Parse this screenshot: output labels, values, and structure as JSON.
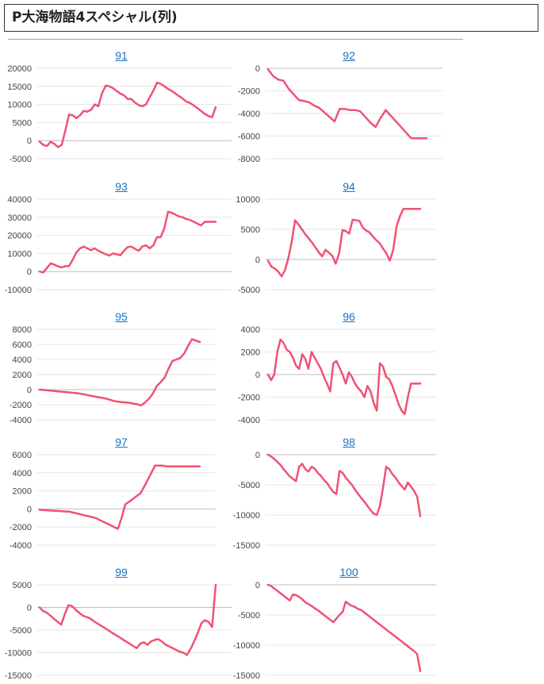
{
  "page": {
    "title": "P大海物語4スペシャル(列)"
  },
  "colors": {
    "line": "#f05273",
    "grid": "#e6e6e6",
    "axis": "#bdbdbd",
    "link": "#1a73c5"
  },
  "chart_data": [
    {
      "type": "line",
      "title": "91",
      "ylim": [
        -5000,
        20000
      ],
      "yticks": [
        -5000,
        0,
        5000,
        10000,
        15000,
        20000
      ],
      "x": [
        0,
        1,
        2,
        3,
        4,
        5,
        6,
        7,
        8,
        9,
        10,
        11,
        12,
        13,
        14,
        15,
        16,
        17,
        18,
        19,
        20,
        21,
        22,
        23,
        24,
        25,
        26,
        27,
        28,
        29,
        30,
        31,
        32,
        33,
        34,
        35,
        36,
        37,
        38,
        39,
        40,
        41,
        42,
        43,
        44,
        45,
        46,
        47,
        48
      ],
      "values": [
        -300,
        -1200,
        -1500,
        -300,
        -900,
        -1800,
        -1200,
        2800,
        7200,
        7000,
        6200,
        7000,
        8200,
        8000,
        8500,
        10000,
        9500,
        13000,
        15200,
        15000,
        14500,
        13700,
        13000,
        12500,
        11500,
        11500,
        10500,
        9800,
        9500,
        10000,
        12000,
        13800,
        16000,
        15700,
        15000,
        14300,
        13700,
        13000,
        12300,
        11600,
        10800,
        10400,
        9700,
        9000,
        8200,
        7400,
        6800,
        6500,
        9200
      ]
    },
    {
      "type": "line",
      "title": "92",
      "ylim": [
        -8000,
        0
      ],
      "yticks": [
        -8000,
        -6000,
        -4000,
        -2000,
        0
      ],
      "x": [
        0,
        1,
        2,
        3,
        4,
        5,
        6,
        7,
        8,
        9,
        10,
        11,
        12,
        13,
        14,
        15,
        16,
        17,
        18,
        19,
        20,
        21,
        22,
        23,
        24,
        25,
        26,
        27,
        28,
        29,
        30,
        31
      ],
      "values": [
        -100,
        -700,
        -1000,
        -1100,
        -1800,
        -2300,
        -2800,
        -2900,
        -3000,
        -3300,
        -3500,
        -3900,
        -4300,
        -4700,
        -3600,
        -3600,
        -3700,
        -3700,
        -3800,
        -4300,
        -4800,
        -5200,
        -4400,
        -3700,
        -4200,
        -4700,
        -5200,
        -5700,
        -6200,
        -6200,
        -6200,
        -6200
      ]
    },
    {
      "type": "line",
      "title": "93",
      "ylim": [
        -10000,
        40000
      ],
      "yticks": [
        -10000,
        0,
        10000,
        20000,
        30000,
        40000
      ],
      "x": [
        0,
        1,
        2,
        3,
        4,
        5,
        6,
        7,
        8,
        9,
        10,
        11,
        12,
        13,
        14,
        15,
        16,
        17,
        18,
        19,
        20,
        21,
        22,
        23,
        24,
        25,
        26,
        27,
        28,
        29,
        30,
        31,
        32,
        33,
        34,
        35,
        36,
        37,
        38,
        39,
        40,
        41,
        42,
        43,
        44,
        45,
        46,
        47,
        48
      ],
      "values": [
        0,
        -500,
        2000,
        4500,
        3800,
        2800,
        2300,
        3000,
        3000,
        6500,
        10500,
        12800,
        13800,
        12800,
        11800,
        12800,
        11500,
        10500,
        9500,
        8800,
        10000,
        9500,
        9000,
        11500,
        13500,
        13800,
        12500,
        11500,
        13800,
        14500,
        12800,
        14500,
        19000,
        19000,
        24000,
        33000,
        32500,
        31500,
        30500,
        30000,
        29000,
        28500,
        27500,
        26500,
        25500,
        27500,
        27500,
        27500,
        27500
      ]
    },
    {
      "type": "line",
      "title": "94",
      "ylim": [
        -5000,
        10000
      ],
      "yticks": [
        -5000,
        0,
        5000,
        10000
      ],
      "x": [
        0,
        1,
        2,
        3,
        4,
        5,
        6,
        7,
        8,
        9,
        10,
        11,
        12,
        13,
        14,
        15,
        16,
        17,
        18,
        19,
        20,
        21,
        22,
        23,
        24,
        25,
        26,
        27,
        28,
        29,
        30,
        31,
        32,
        33,
        34,
        35,
        36,
        37,
        38,
        39,
        40,
        41,
        42,
        43,
        44,
        45
      ],
      "values": [
        -200,
        -1200,
        -1500,
        -2000,
        -2800,
        -1800,
        200,
        3000,
        6500,
        5800,
        5000,
        4200,
        3500,
        2800,
        2000,
        1200,
        500,
        1600,
        1100,
        600,
        -700,
        1000,
        4900,
        4700,
        4300,
        6600,
        6500,
        6400,
        5300,
        4800,
        4500,
        3800,
        3200,
        2700,
        1800,
        1000,
        -200,
        1600,
        5500,
        7200,
        8400,
        8400,
        8400,
        8400,
        8400,
        8400
      ]
    },
    {
      "type": "line",
      "title": "95",
      "ylim": [
        -4000,
        8000
      ],
      "yticks": [
        -4000,
        -2000,
        0,
        2000,
        4000,
        6000,
        8000
      ],
      "x": [
        0,
        1,
        2,
        3,
        4,
        5,
        6,
        7,
        8,
        9,
        10,
        11,
        12,
        13,
        14,
        15,
        16,
        17,
        18,
        19,
        20,
        21,
        22,
        23,
        24,
        25,
        26,
        27,
        28,
        29,
        30,
        31,
        32,
        33,
        34,
        35,
        36,
        37,
        38,
        39,
        40,
        41
      ],
      "values": [
        0,
        -50,
        -100,
        -150,
        -200,
        -250,
        -300,
        -350,
        -400,
        -450,
        -500,
        -600,
        -700,
        -800,
        -900,
        -1000,
        -1100,
        -1200,
        -1350,
        -1500,
        -1600,
        -1650,
        -1700,
        -1750,
        -1850,
        -1950,
        -2100,
        -1700,
        -1200,
        -500,
        500,
        1000,
        1600,
        2800,
        3800,
        4000,
        4200,
        4800,
        5800,
        6700,
        6500,
        6300
      ]
    },
    {
      "type": "line",
      "title": "96",
      "ylim": [
        -4000,
        4000
      ],
      "yticks": [
        -4000,
        -2000,
        0,
        2000,
        4000
      ],
      "x": [
        0,
        1,
        2,
        3,
        4,
        5,
        6,
        7,
        8,
        9,
        10,
        11,
        12,
        13,
        14,
        15,
        16,
        17,
        18,
        19,
        20,
        21,
        22,
        23,
        24,
        25,
        26,
        27,
        28,
        29,
        30,
        31,
        32,
        33,
        34,
        35,
        36,
        37,
        38,
        39,
        40,
        41,
        42,
        43,
        44,
        45,
        46,
        47,
        48,
        49
      ],
      "values": [
        0,
        -500,
        0,
        2000,
        3100,
        2800,
        2200,
        2000,
        1500,
        800,
        500,
        1800,
        1400,
        500,
        2000,
        1500,
        1000,
        500,
        -200,
        -800,
        -1500,
        1000,
        1200,
        600,
        0,
        -800,
        200,
        -200,
        -800,
        -1200,
        -1500,
        -2000,
        -1000,
        -1500,
        -2500,
        -3200,
        1000,
        700,
        -200,
        -400,
        -1000,
        -1800,
        -2600,
        -3200,
        -3500,
        -2000,
        -800,
        -800,
        -800,
        -800
      ]
    },
    {
      "type": "line",
      "title": "97",
      "ylim": [
        -4000,
        6000
      ],
      "yticks": [
        -4000,
        -2000,
        0,
        2000,
        4000,
        6000
      ],
      "x": [
        0,
        1,
        2,
        3,
        4,
        5,
        6,
        7,
        8,
        9,
        10,
        11,
        12,
        13,
        14,
        15,
        16,
        17,
        18,
        19,
        20,
        21,
        22,
        23,
        24,
        25,
        26,
        27,
        28,
        29,
        30,
        31,
        32,
        33,
        34,
        35,
        36,
        37,
        38,
        39,
        40,
        41,
        42,
        43
      ],
      "values": [
        -100,
        -120,
        -150,
        -180,
        -200,
        -220,
        -250,
        -280,
        -300,
        -400,
        -500,
        -600,
        -700,
        -800,
        -900,
        -1000,
        -1200,
        -1400,
        -1600,
        -1800,
        -2000,
        -2200,
        -1000,
        500,
        800,
        1100,
        1400,
        1700,
        2400,
        3200,
        4000,
        4800,
        4800,
        4800,
        4700,
        4700,
        4700,
        4700,
        4700,
        4700,
        4700,
        4700,
        4700,
        4700
      ]
    },
    {
      "type": "line",
      "title": "98",
      "ylim": [
        -15000,
        0
      ],
      "yticks": [
        -15000,
        -10000,
        -5000,
        0
      ],
      "x": [
        0,
        1,
        2,
        3,
        4,
        5,
        6,
        7,
        8,
        9,
        10,
        11,
        12,
        13,
        14,
        15,
        16,
        17,
        18,
        19,
        20,
        21,
        22,
        23,
        24,
        25,
        26,
        27,
        28,
        29,
        30,
        31,
        32,
        33,
        34,
        35,
        36,
        37,
        38,
        39,
        40,
        41,
        42,
        43,
        44,
        45,
        46,
        47,
        48,
        49
      ],
      "values": [
        0,
        -300,
        -700,
        -1200,
        -1700,
        -2400,
        -3000,
        -3600,
        -4000,
        -4400,
        -2000,
        -1500,
        -2400,
        -2800,
        -2000,
        -2300,
        -3000,
        -3500,
        -4200,
        -4700,
        -5500,
        -6200,
        -6500,
        -2700,
        -3000,
        -3800,
        -4400,
        -5000,
        -5800,
        -6500,
        -7200,
        -7800,
        -8500,
        -9200,
        -9800,
        -10000,
        -8500,
        -5500,
        -2000,
        -2400,
        -3200,
        -3800,
        -4600,
        -5200,
        -5800,
        -4600,
        -5300,
        -6000,
        -7000,
        -10200
      ]
    },
    {
      "type": "line",
      "title": "99",
      "ylim": [
        -15000,
        5000
      ],
      "yticks": [
        -15000,
        -10000,
        -5000,
        0,
        5000
      ],
      "x": [
        0,
        1,
        2,
        3,
        4,
        5,
        6,
        7,
        8,
        9,
        10,
        11,
        12,
        13,
        14,
        15,
        16,
        17,
        18,
        19,
        20,
        21,
        22,
        23,
        24,
        25,
        26,
        27,
        28,
        29,
        30,
        31,
        32,
        33,
        34,
        35,
        36,
        37,
        38,
        39,
        40,
        41,
        42,
        43,
        44,
        45,
        46,
        47,
        48,
        49
      ],
      "values": [
        0,
        -800,
        -1200,
        -1800,
        -2500,
        -3200,
        -3800,
        -1500,
        500,
        300,
        -500,
        -1200,
        -1800,
        -2100,
        -2400,
        -3000,
        -3500,
        -4000,
        -4500,
        -5000,
        -5500,
        -6000,
        -6500,
        -7000,
        -7500,
        -8000,
        -8500,
        -9000,
        -8000,
        -7700,
        -8300,
        -7500,
        -7200,
        -7000,
        -7500,
        -8200,
        -8600,
        -9000,
        -9400,
        -9800,
        -10000,
        -10500,
        -9200,
        -7500,
        -5700,
        -3500,
        -2800,
        -3200,
        -4300,
        5000
      ]
    },
    {
      "type": "line",
      "title": "100",
      "ylim": [
        -15000,
        0
      ],
      "yticks": [
        -15000,
        -10000,
        -5000,
        0
      ],
      "x": [
        0,
        1,
        2,
        3,
        4,
        5,
        6,
        7,
        8,
        9,
        10,
        11,
        12,
        13,
        14,
        15,
        16,
        17,
        18,
        19,
        20,
        21,
        22,
        23,
        24,
        25,
        26,
        27,
        28,
        29,
        30,
        31,
        32,
        33,
        34,
        35,
        36,
        37,
        38,
        39,
        40,
        41,
        42,
        43,
        44,
        45,
        46,
        47,
        48,
        49
      ],
      "values": [
        0,
        -200,
        -600,
        -1000,
        -1400,
        -1800,
        -2200,
        -2600,
        -1600,
        -1700,
        -2000,
        -2400,
        -2900,
        -3200,
        -3500,
        -3900,
        -4200,
        -4600,
        -5000,
        -5400,
        -5800,
        -6200,
        -5600,
        -5000,
        -4500,
        -2800,
        -3200,
        -3500,
        -3700,
        -4000,
        -4200,
        -4600,
        -5000,
        -5400,
        -5800,
        -6200,
        -6600,
        -7000,
        -7400,
        -7800,
        -8200,
        -8600,
        -9000,
        -9400,
        -9800,
        -10200,
        -10600,
        -11000,
        -11500,
        -14300
      ]
    }
  ]
}
